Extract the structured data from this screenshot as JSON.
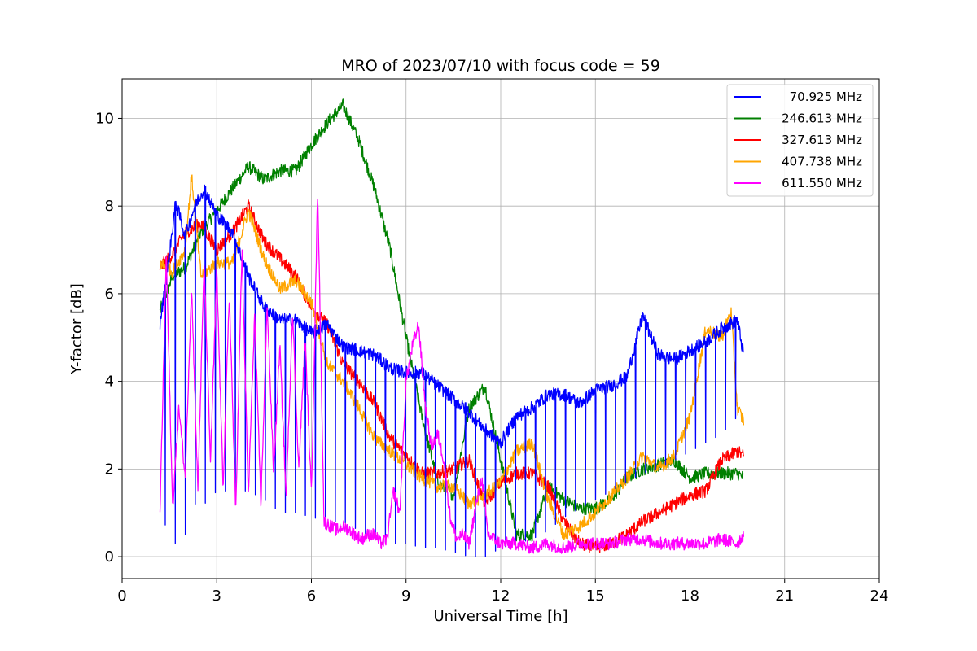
{
  "chart_data": {
    "type": "line",
    "title": "MRO of 2023/07/10 with focus code = 59",
    "xlabel": "Universal Time [h]",
    "ylabel": "Y-factor [dB]",
    "xlim": [
      0,
      24
    ],
    "ylim": [
      -0.5,
      10.9
    ],
    "xticks": [
      0,
      3,
      6,
      9,
      12,
      15,
      18,
      21,
      24
    ],
    "yticks": [
      0,
      2,
      4,
      6,
      8,
      10
    ],
    "grid": true,
    "legend_position": "top-right",
    "series": [
      {
        "name": " 70.925 MHz",
        "color": "#0000ff",
        "x": [
          1.2,
          1.5,
          1.7,
          2.0,
          2.3,
          2.6,
          3.0,
          3.5,
          4.0,
          4.5,
          5.0,
          5.5,
          6.0,
          6.5,
          7.0,
          7.5,
          8.0,
          8.5,
          9.0,
          9.5,
          10.0,
          10.5,
          11.0,
          11.5,
          12.0,
          12.5,
          13.0,
          13.5,
          14.0,
          14.5,
          15.0,
          15.5,
          16.0,
          16.5,
          17.0,
          17.5,
          18.0,
          18.5,
          19.0,
          19.5,
          19.7
        ],
        "values": [
          5.3,
          6.9,
          8.1,
          7.3,
          8.0,
          8.4,
          7.8,
          7.4,
          6.4,
          5.7,
          5.4,
          5.4,
          5.1,
          5.3,
          4.8,
          4.7,
          4.6,
          4.3,
          4.2,
          4.2,
          3.9,
          3.6,
          3.3,
          2.9,
          2.6,
          3.2,
          3.4,
          3.7,
          3.7,
          3.5,
          3.8,
          3.9,
          4.1,
          5.5,
          4.6,
          4.5,
          4.7,
          4.9,
          5.2,
          5.4,
          4.6
        ],
        "dips": [
          1.2,
          0.3,
          0.3,
          0.5,
          1.2,
          1.2,
          1.5,
          1.5,
          1.5,
          1.3,
          1.0,
          1.0,
          0.9,
          0.8,
          0.8,
          0.6,
          0.4,
          0.3,
          0.3,
          0.2,
          0.2,
          0.1,
          0.0,
          0.0,
          0.2,
          0.3,
          0.4,
          0.6,
          0.9,
          1.1,
          1.3,
          1.5,
          1.7,
          1.9,
          2.0,
          2.2,
          2.4,
          2.6,
          2.8,
          3.2,
          3.5
        ]
      },
      {
        "name": "246.613 MHz",
        "color": "#008000",
        "x": [
          1.2,
          1.6,
          2.0,
          2.5,
          3.0,
          3.5,
          4.0,
          4.5,
          5.0,
          5.5,
          6.0,
          6.5,
          7.0,
          7.5,
          8.0,
          8.5,
          9.0,
          9.5,
          10.0,
          10.5,
          11.0,
          11.5,
          12.0,
          12.5,
          13.0,
          13.5,
          14.0,
          14.5,
          15.0,
          15.5,
          16.0,
          16.5,
          17.0,
          17.5,
          18.0,
          18.5,
          19.0,
          19.5,
          19.7
        ],
        "values": [
          5.6,
          6.4,
          6.6,
          7.4,
          7.9,
          8.4,
          8.9,
          8.6,
          8.8,
          8.8,
          9.4,
          9.9,
          10.3,
          9.5,
          8.4,
          7.0,
          5.0,
          3.2,
          1.7,
          1.4,
          3.4,
          3.9,
          2.2,
          0.5,
          0.5,
          1.6,
          1.3,
          1.1,
          1.1,
          1.3,
          1.8,
          2.0,
          2.1,
          2.2,
          1.8,
          1.9,
          1.9,
          1.9,
          1.8
        ]
      },
      {
        "name": "327.613 MHz",
        "color": "#ff0000",
        "x": [
          1.2,
          1.6,
          2.0,
          2.5,
          3.0,
          3.5,
          4.0,
          4.5,
          5.0,
          5.5,
          6.0,
          6.5,
          7.0,
          7.5,
          8.0,
          8.5,
          9.0,
          9.5,
          10.0,
          10.5,
          11.0,
          11.5,
          12.0,
          12.5,
          13.0,
          13.5,
          14.0,
          14.5,
          15.0,
          15.5,
          16.0,
          16.5,
          17.0,
          17.5,
          18.0,
          18.5,
          19.0,
          19.5,
          19.7
        ],
        "values": [
          6.6,
          6.9,
          7.4,
          7.6,
          7.0,
          7.4,
          8.0,
          7.2,
          6.8,
          6.4,
          5.7,
          5.3,
          4.4,
          4.0,
          3.5,
          2.7,
          2.3,
          1.9,
          1.9,
          2.0,
          2.2,
          1.2,
          1.7,
          1.9,
          1.9,
          1.6,
          0.8,
          0.3,
          0.2,
          0.3,
          0.5,
          0.8,
          1.0,
          1.2,
          1.4,
          1.5,
          2.2,
          2.4,
          2.3
        ]
      },
      {
        "name": "407.738 MHz",
        "color": "#ffa500",
        "x": [
          1.2,
          1.6,
          2.0,
          2.2,
          2.5,
          3.0,
          3.5,
          4.0,
          4.5,
          5.0,
          5.5,
          6.0,
          6.5,
          7.0,
          7.5,
          8.0,
          8.5,
          9.0,
          9.5,
          10.0,
          10.5,
          11.0,
          11.5,
          12.0,
          12.5,
          13.0,
          13.5,
          14.0,
          14.5,
          15.0,
          15.5,
          16.0,
          16.5,
          17.0,
          17.5,
          18.0,
          18.5,
          19.0,
          19.3,
          19.5,
          19.7
        ],
        "values": [
          6.7,
          6.5,
          7.0,
          8.7,
          6.4,
          6.7,
          6.7,
          7.9,
          6.8,
          6.1,
          6.3,
          5.8,
          4.4,
          4.0,
          3.4,
          2.7,
          2.4,
          2.1,
          1.8,
          1.6,
          1.6,
          1.2,
          1.4,
          1.7,
          2.4,
          2.6,
          1.3,
          0.5,
          0.7,
          1.0,
          1.4,
          1.8,
          2.3,
          2.0,
          2.3,
          3.2,
          5.2,
          5.0,
          5.6,
          3.4,
          3.1
        ]
      },
      {
        "name": "611.550 MHz",
        "color": "#ff00ff",
        "x": [
          1.2,
          1.4,
          1.6,
          1.8,
          2.0,
          2.2,
          2.4,
          2.6,
          2.8,
          3.0,
          3.2,
          3.4,
          3.6,
          3.8,
          4.0,
          4.2,
          4.4,
          4.6,
          4.8,
          5.0,
          5.2,
          5.4,
          5.6,
          5.8,
          6.0,
          6.2,
          6.4,
          6.6,
          6.8,
          7.0,
          7.2,
          7.4,
          7.6,
          7.8,
          8.0,
          8.2,
          8.4,
          8.6,
          8.8,
          9.0,
          9.2,
          9.4,
          9.6,
          9.8,
          10.0,
          10.2,
          10.4,
          10.6,
          10.8,
          11.0,
          11.2,
          11.4,
          11.6,
          11.8,
          12.0,
          12.5,
          13.0,
          13.5,
          14.0,
          14.5,
          15.0,
          15.5,
          16.0,
          16.5,
          17.0,
          17.5,
          18.0,
          18.5,
          19.0,
          19.5,
          19.7
        ],
        "values": [
          1.0,
          6.9,
          1.1,
          3.4,
          1.8,
          6.2,
          1.5,
          6.7,
          2.2,
          6.5,
          1.6,
          6.0,
          1.0,
          7.0,
          1.4,
          5.5,
          1.2,
          5.8,
          1.9,
          4.8,
          1.3,
          5.6,
          2.0,
          5.0,
          1.4,
          8.4,
          0.8,
          0.7,
          0.6,
          0.7,
          0.6,
          0.5,
          0.4,
          0.5,
          0.5,
          0.3,
          0.4,
          1.5,
          1.0,
          4.0,
          4.8,
          5.3,
          3.5,
          2.5,
          2.8,
          2.2,
          0.9,
          0.4,
          0.5,
          0.3,
          1.1,
          1.8,
          0.5,
          0.4,
          0.3,
          0.3,
          0.2,
          0.3,
          0.2,
          0.3,
          0.3,
          0.3,
          0.4,
          0.4,
          0.3,
          0.3,
          0.3,
          0.3,
          0.4,
          0.3,
          0.5
        ]
      }
    ]
  }
}
